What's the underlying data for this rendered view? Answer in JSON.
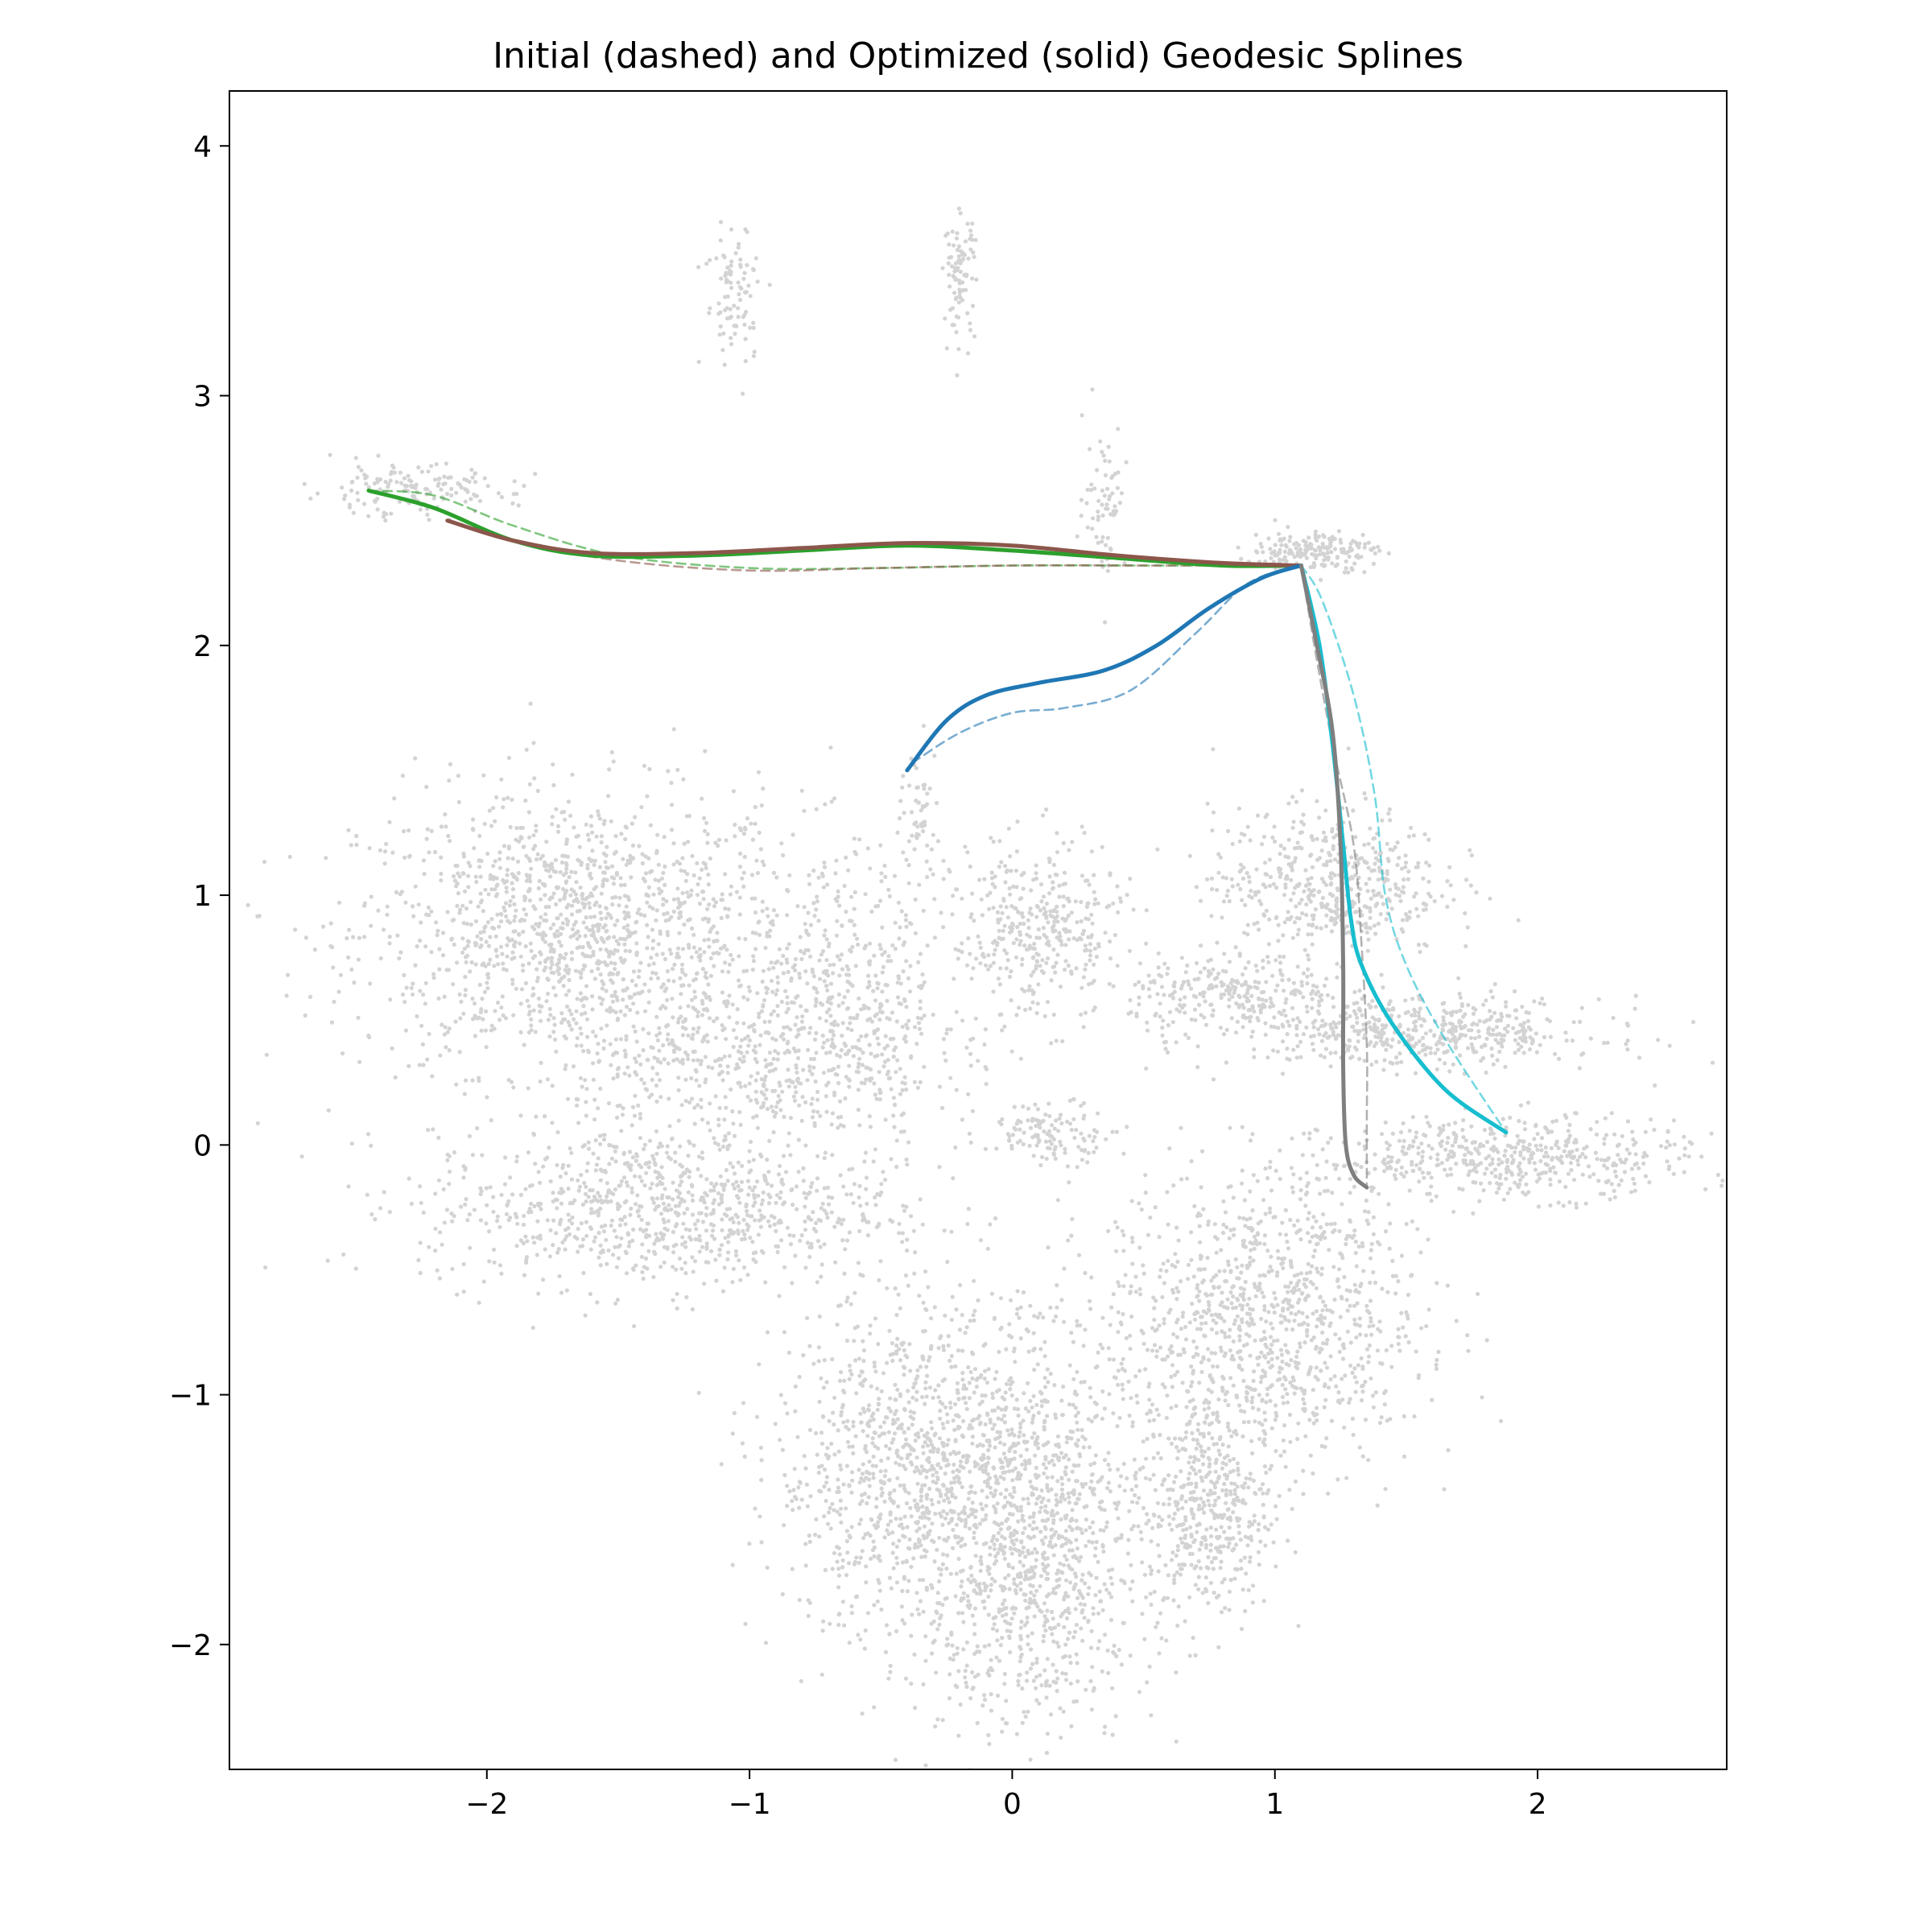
{
  "chart_data": {
    "type": "line",
    "title": "Initial (dashed) and Optimized (solid) Geodesic Splines",
    "xlabel": "",
    "ylabel": "",
    "xlim": [
      -2.98,
      2.72
    ],
    "ylim": [
      -2.5,
      4.22
    ],
    "xticks": [
      -2,
      -1,
      0,
      1,
      2
    ],
    "yticks": [
      -2,
      -1,
      0,
      1,
      2,
      3,
      4
    ],
    "xtick_labels": [
      "−2",
      "−1",
      "0",
      "1",
      "2"
    ],
    "ytick_labels": [
      "−2",
      "−1",
      "0",
      "1",
      "2",
      "3",
      "4"
    ],
    "grid": false,
    "legend": "none",
    "background_scatter": {
      "color": "#d3d3d3",
      "note_clusters": [
        {
          "cx": -1.65,
          "cy": 0.85,
          "sx": 0.42,
          "sy": 0.28,
          "n": 1400
        },
        {
          "cx": -1.35,
          "cy": -0.25,
          "sx": 0.45,
          "sy": 0.16,
          "n": 900
        },
        {
          "cx": -1.0,
          "cy": 0.35,
          "sx": 0.35,
          "sy": 0.18,
          "n": 500
        },
        {
          "cx": -0.6,
          "cy": 0.6,
          "sx": 0.22,
          "sy": 0.3,
          "n": 400
        },
        {
          "cx": 0.1,
          "cy": 0.85,
          "sx": 0.16,
          "sy": 0.18,
          "n": 380
        },
        {
          "cx": 0.15,
          "cy": 0.05,
          "sx": 0.12,
          "sy": 0.06,
          "n": 120
        },
        {
          "cx": -0.35,
          "cy": -1.3,
          "sx": 0.28,
          "sy": 0.35,
          "n": 1100
        },
        {
          "cx": 0.1,
          "cy": -1.6,
          "sx": 0.22,
          "sy": 0.38,
          "n": 1000
        },
        {
          "cx": 0.95,
          "cy": -0.7,
          "sx": 0.3,
          "sy": 0.3,
          "n": 1100
        },
        {
          "cx": 0.75,
          "cy": -1.45,
          "sx": 0.12,
          "sy": 0.22,
          "n": 420
        },
        {
          "cx": 1.2,
          "cy": 1.05,
          "sx": 0.22,
          "sy": 0.15,
          "n": 500
        },
        {
          "cx": 0.85,
          "cy": 0.6,
          "sx": 0.2,
          "sy": 0.08,
          "n": 260
        },
        {
          "cx": 1.55,
          "cy": 0.45,
          "sx": 0.35,
          "sy": 0.07,
          "n": 500
        },
        {
          "cx": 1.9,
          "cy": -0.05,
          "sx": 0.35,
          "sy": 0.08,
          "n": 500
        },
        {
          "cx": 1.15,
          "cy": 2.38,
          "sx": 0.12,
          "sy": 0.04,
          "n": 180
        },
        {
          "cx": -2.3,
          "cy": 2.62,
          "sx": 0.2,
          "sy": 0.05,
          "n": 150
        },
        {
          "cx": -0.2,
          "cy": 3.48,
          "sx": 0.03,
          "sy": 0.12,
          "n": 90
        },
        {
          "cx": -1.05,
          "cy": 3.4,
          "sx": 0.06,
          "sy": 0.15,
          "n": 90
        },
        {
          "cx": 0.35,
          "cy": 2.6,
          "sx": 0.04,
          "sy": 0.15,
          "n": 70
        },
        {
          "cx": -0.35,
          "cy": 1.35,
          "sx": 0.04,
          "sy": 0.12,
          "n": 50
        }
      ]
    },
    "series": [
      {
        "style": "dashed",
        "color": "#2ca02c",
        "x": [
          -2.45,
          -2.2,
          -1.9,
          -1.5,
          -1.0,
          -0.5,
          0.0,
          0.5,
          0.8,
          1.1
        ],
        "y": [
          2.62,
          2.6,
          2.48,
          2.36,
          2.31,
          2.31,
          2.32,
          2.32,
          2.32,
          2.32
        ]
      },
      {
        "style": "dashed",
        "color": "#8c564b",
        "x": [
          -2.15,
          -1.9,
          -1.5,
          -1.0,
          -0.5,
          0.0,
          0.5,
          0.8,
          1.1
        ],
        "y": [
          2.5,
          2.42,
          2.34,
          2.3,
          2.31,
          2.32,
          2.32,
          2.32,
          2.32
        ]
      },
      {
        "style": "dashed",
        "color": "#1f77b4",
        "x": [
          -0.38,
          -0.2,
          0.0,
          0.2,
          0.45,
          0.7,
          0.9,
          1.1
        ],
        "y": [
          1.53,
          1.65,
          1.73,
          1.75,
          1.82,
          2.05,
          2.25,
          2.32
        ]
      },
      {
        "style": "dashed",
        "color": "#17becf",
        "x": [
          1.1,
          1.18,
          1.3,
          1.38,
          1.42,
          1.5,
          1.65,
          1.88
        ],
        "y": [
          2.32,
          2.18,
          1.8,
          1.4,
          1.0,
          0.72,
          0.42,
          0.05
        ]
      },
      {
        "style": "dashed",
        "color": "#7f7f7f",
        "x": [
          1.1,
          1.15,
          1.22,
          1.3,
          1.33,
          1.35,
          1.35,
          1.35
        ],
        "y": [
          2.32,
          2.0,
          1.6,
          1.2,
          0.8,
          0.4,
          0.1,
          -0.17
        ]
      },
      {
        "style": "solid",
        "color": "#2ca02c",
        "x": [
          -2.45,
          -2.2,
          -1.9,
          -1.6,
          -1.2,
          -0.8,
          -0.4,
          0.0,
          0.4,
          0.8,
          1.1
        ],
        "y": [
          2.62,
          2.55,
          2.42,
          2.36,
          2.36,
          2.38,
          2.4,
          2.38,
          2.35,
          2.32,
          2.32
        ]
      },
      {
        "style": "solid",
        "color": "#8c564b",
        "x": [
          -2.15,
          -1.9,
          -1.6,
          -1.2,
          -0.8,
          -0.4,
          0.0,
          0.4,
          0.8,
          1.1
        ],
        "y": [
          2.5,
          2.42,
          2.37,
          2.37,
          2.39,
          2.41,
          2.4,
          2.36,
          2.33,
          2.32
        ]
      },
      {
        "style": "solid",
        "color": "#1f77b4",
        "x": [
          -0.4,
          -0.25,
          -0.1,
          0.1,
          0.35,
          0.55,
          0.75,
          0.95,
          1.1
        ],
        "y": [
          1.5,
          1.7,
          1.8,
          1.85,
          1.9,
          2.0,
          2.15,
          2.27,
          2.32
        ]
      },
      {
        "style": "solid",
        "color": "#17becf",
        "x": [
          1.1,
          1.17,
          1.22,
          1.26,
          1.29,
          1.33,
          1.45,
          1.65,
          1.88
        ],
        "y": [
          2.32,
          2.0,
          1.6,
          1.2,
          0.9,
          0.72,
          0.48,
          0.22,
          0.05
        ]
      },
      {
        "style": "solid",
        "color": "#7f7f7f",
        "x": [
          1.1,
          1.16,
          1.22,
          1.25,
          1.26,
          1.26,
          1.27,
          1.3,
          1.35
        ],
        "y": [
          2.32,
          2.0,
          1.65,
          1.2,
          0.7,
          0.3,
          0.0,
          -0.12,
          -0.17
        ]
      }
    ]
  }
}
